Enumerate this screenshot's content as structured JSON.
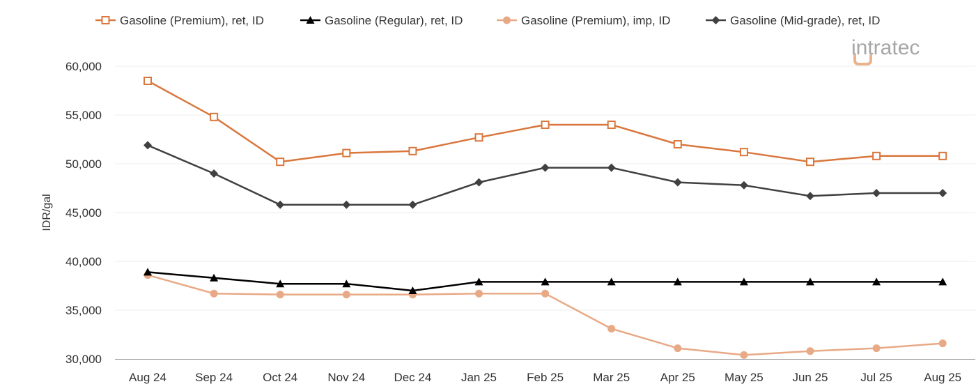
{
  "logo": {
    "text": "intratec",
    "color": "#a6a6a6",
    "accent": "#e8b48f"
  },
  "chart_data": {
    "type": "line",
    "title": "",
    "xlabel": "",
    "ylabel": "IDR/gal",
    "categories": [
      "Aug 24",
      "Sep 24",
      "Oct 24",
      "Nov 24",
      "Dec 24",
      "Jan 25",
      "Feb 25",
      "Mar 25",
      "Apr 25",
      "May 25",
      "Jun 25",
      "Jul 25",
      "Aug 25"
    ],
    "ylim": [
      30000,
      60000
    ],
    "yticks": [
      30000,
      35000,
      40000,
      45000,
      50000,
      55000,
      60000
    ],
    "ytick_labels": [
      "30,000",
      "35,000",
      "40,000",
      "45,000",
      "50,000",
      "55,000",
      "60,000"
    ],
    "grid": true,
    "legend_position": "top",
    "series": [
      {
        "name": "Gasoline (Premium), ret, ID",
        "color": "#d9773d",
        "marker": "square-open",
        "values": [
          58500,
          54800,
          50200,
          51100,
          51300,
          52700,
          54000,
          54000,
          52000,
          51200,
          50200,
          50800,
          50800
        ]
      },
      {
        "name": "Gasoline (Regular), ret, ID",
        "color": "#000000",
        "marker": "triangle",
        "values": [
          38900,
          38300,
          37700,
          37700,
          37000,
          37900,
          37900,
          37900,
          37900,
          37900,
          37900,
          37900,
          37900
        ]
      },
      {
        "name": "Gasoline (Premium), imp, ID",
        "color": "#e8a986",
        "marker": "circle",
        "values": [
          38600,
          36700,
          36600,
          36600,
          36600,
          36700,
          36700,
          33100,
          31100,
          30400,
          30800,
          31100,
          31600
        ]
      },
      {
        "name": "Gasoline (Mid-grade), ret, ID",
        "color": "#404040",
        "marker": "diamond",
        "values": [
          51900,
          49000,
          45800,
          45800,
          45800,
          48100,
          49600,
          49600,
          48100,
          47800,
          46700,
          47000,
          47000
        ]
      }
    ]
  }
}
